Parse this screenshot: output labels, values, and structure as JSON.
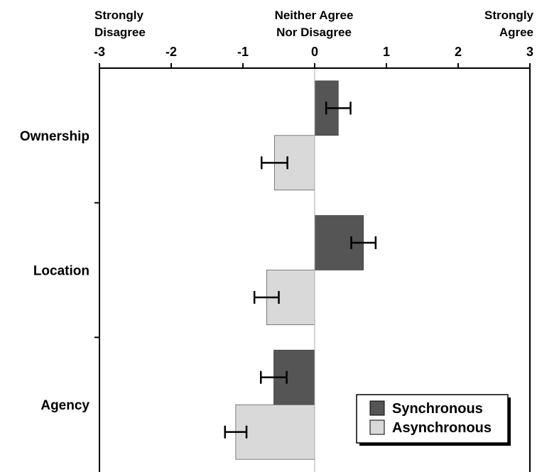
{
  "chart_data": {
    "type": "bar",
    "orientation": "horizontal",
    "top_axis_labels": {
      "left": [
        "Strongly",
        "Disagree"
      ],
      "center": [
        "Neither Agree",
        "Nor Disagree"
      ],
      "right": [
        "Strongly",
        "Agree"
      ]
    },
    "xlim": [
      -3,
      3
    ],
    "xticks": [
      -3,
      -2,
      -1,
      0,
      1,
      2,
      3
    ],
    "xtick_labels": [
      "-3",
      "-2",
      "-1",
      "0",
      "1",
      "2",
      "3"
    ],
    "categories": [
      "Ownership",
      "Location",
      "Agency"
    ],
    "series": [
      {
        "name": "Synchronous",
        "color": "#555555",
        "values": [
          0.33,
          0.68,
          -0.57
        ],
        "errors": [
          0.17,
          0.17,
          0.18
        ]
      },
      {
        "name": "Asynchronous",
        "color": "#d9d9d9",
        "values": [
          -0.56,
          -0.67,
          -1.1
        ],
        "errors": [
          0.18,
          0.17,
          0.15
        ]
      }
    ],
    "legend": {
      "position": "bottom-right"
    },
    "grid": false
  }
}
